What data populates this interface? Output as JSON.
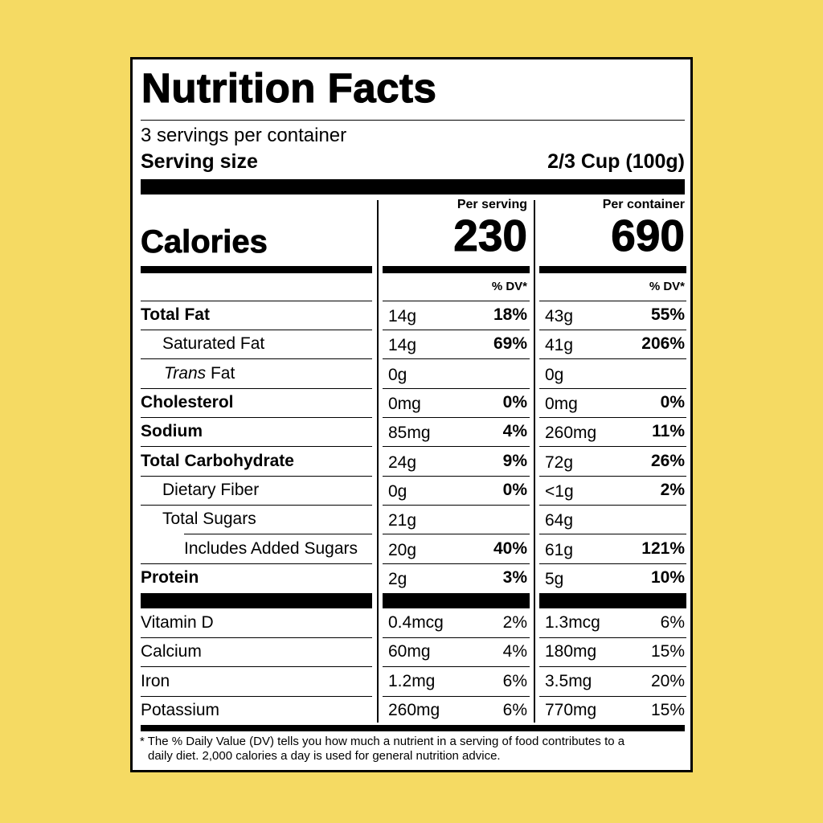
{
  "label": {
    "title": "Nutrition Facts",
    "servings_per_container": "3 servings per container",
    "serving_size_label": "Serving size",
    "serving_size_value": "2/3 Cup (100g)",
    "calories_label": "Calories",
    "per_serving_header": "Per serving",
    "per_container_header": "Per container",
    "calories_per_serving": "230",
    "calories_per_container": "690",
    "dv_header": "% DV*",
    "nutrients": [
      {
        "name": "Total Fat",
        "serving_amount": "14g",
        "serving_dv": "18%",
        "container_amount": "43g",
        "container_dv": "55%"
      },
      {
        "name": "Saturated Fat",
        "serving_amount": "14g",
        "serving_dv": "69%",
        "container_amount": "41g",
        "container_dv": "206%"
      },
      {
        "name_italic": "Trans",
        "name": " Fat",
        "serving_amount": "0g",
        "serving_dv": "",
        "container_amount": "0g",
        "container_dv": ""
      },
      {
        "name": "Cholesterol",
        "serving_amount": "0mg",
        "serving_dv": "0%",
        "container_amount": "0mg",
        "container_dv": "0%"
      },
      {
        "name": "Sodium",
        "serving_amount": "85mg",
        "serving_dv": "4%",
        "container_amount": "260mg",
        "container_dv": "11%"
      },
      {
        "name": "Total Carbohydrate",
        "serving_amount": "24g",
        "serving_dv": "9%",
        "container_amount": "72g",
        "container_dv": "26%"
      },
      {
        "name": "Dietary Fiber",
        "serving_amount": "0g",
        "serving_dv": "0%",
        "container_amount": "<1g",
        "container_dv": "2%"
      },
      {
        "name": "Total Sugars",
        "serving_amount": "21g",
        "serving_dv": "",
        "container_amount": "64g",
        "container_dv": ""
      },
      {
        "name": "Includes Added Sugars",
        "serving_amount": "20g",
        "serving_dv": "40%",
        "container_amount": "61g",
        "container_dv": "121%"
      },
      {
        "name": "Protein",
        "serving_amount": "2g",
        "serving_dv": "3%",
        "container_amount": "5g",
        "container_dv": "10%"
      }
    ],
    "vitamins": [
      {
        "name": "Vitamin D",
        "serving_amount": "0.4mcg",
        "serving_dv": "2%",
        "container_amount": "1.3mcg",
        "container_dv": "6%"
      },
      {
        "name": "Calcium",
        "serving_amount": "60mg",
        "serving_dv": "4%",
        "container_amount": "180mg",
        "container_dv": "15%"
      },
      {
        "name": "Iron",
        "serving_amount": "1.2mg",
        "serving_dv": "6%",
        "container_amount": "3.5mg",
        "container_dv": "20%"
      },
      {
        "name": "Potassium",
        "serving_amount": "260mg",
        "serving_dv": "6%",
        "container_amount": "770mg",
        "container_dv": "15%"
      }
    ],
    "footnote_line1": "* The % Daily Value (DV) tells you how much a nutrient in a serving of food contributes to a",
    "footnote_line2": "daily diet. 2,000 calories a day is used for general nutrition advice."
  },
  "colors": {
    "background": "#f5da63",
    "label": "#ffffff",
    "ink": "#000000"
  }
}
